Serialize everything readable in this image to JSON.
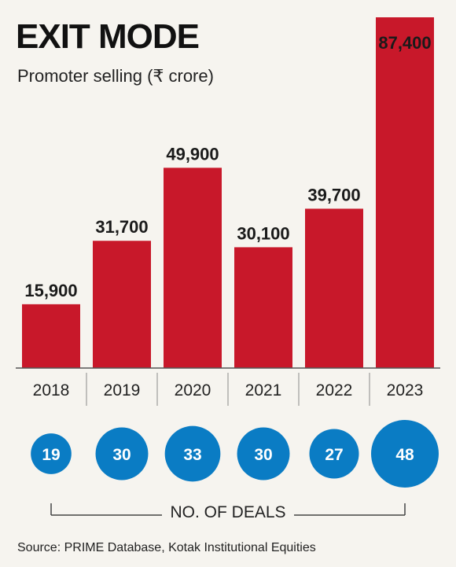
{
  "title": "EXIT MODE",
  "subtitle": "Promoter selling (₹ crore)",
  "deals_label": "NO. OF DEALS",
  "source": "Source: PRIME Database, Kotak Institutional Equities",
  "colors": {
    "bar": "#c8182a",
    "bubble": "#0a7cc4",
    "background": "#f6f4ef"
  },
  "chart_data": {
    "type": "bar",
    "categories": [
      "2018",
      "2019",
      "2020",
      "2021",
      "2022",
      "2023"
    ],
    "values": [
      15900,
      31700,
      49900,
      30100,
      39700,
      87400
    ],
    "value_labels": [
      "15,900",
      "31,700",
      "49,900",
      "30,100",
      "39,700",
      "87,400"
    ],
    "deals": [
      19,
      30,
      33,
      30,
      27,
      48
    ],
    "title": "EXIT MODE",
    "subtitle": "Promoter selling (₹ crore)",
    "ylim": [
      0,
      87400
    ],
    "grid": false,
    "legend": "none"
  }
}
